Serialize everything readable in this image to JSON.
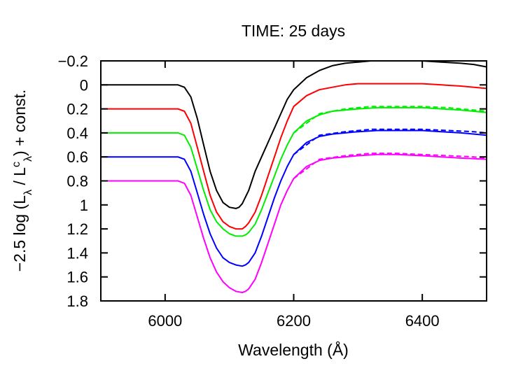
{
  "chart_data": {
    "type": "line",
    "title": "TIME: 25 days",
    "xlabel": "Wavelength (Å)",
    "ylabel": {
      "prefix": "−2.5 log (L",
      "sub1": "λ",
      "mid": " / L",
      "sup": "c",
      "sub2": "λ",
      "suffix": ") + const."
    },
    "xlim": [
      5900,
      6500
    ],
    "ylim": [
      -0.2,
      1.8
    ],
    "y_inverted": true,
    "xticks": [
      6000,
      6200,
      6400
    ],
    "yticks": [
      -0.2,
      0,
      0.2,
      0.4,
      0.6,
      0.8,
      1,
      1.2,
      1.4,
      1.6,
      1.8
    ],
    "ytick_labels": [
      "−0.2",
      "0",
      "0.2",
      "0.4",
      "0.6",
      "0.8",
      "1",
      "1.2",
      "1.4",
      "1.6",
      "1.8"
    ],
    "grid": false,
    "legend": "none",
    "series": [
      {
        "color": "#000000",
        "dash": "solid",
        "x": [
          5900,
          6000,
          6020,
          6030,
          6040,
          6050,
          6060,
          6070,
          6080,
          6090,
          6100,
          6110,
          6115,
          6120,
          6130,
          6140,
          6150,
          6160,
          6170,
          6180,
          6190,
          6200,
          6220,
          6240,
          6260,
          6280,
          6300,
          6320,
          6350,
          6380,
          6400,
          6430,
          6460,
          6480,
          6500
        ],
        "y": [
          0.0,
          0.0,
          0.0,
          0.02,
          0.1,
          0.28,
          0.5,
          0.72,
          0.88,
          0.98,
          1.02,
          1.03,
          1.02,
          0.99,
          0.88,
          0.72,
          0.6,
          0.48,
          0.36,
          0.24,
          0.12,
          0.04,
          -0.06,
          -0.12,
          -0.16,
          -0.18,
          -0.19,
          -0.2,
          -0.2,
          -0.2,
          -0.2,
          -0.19,
          -0.18,
          -0.17,
          -0.15
        ]
      },
      {
        "color": "#ff0000",
        "dash": "solid",
        "x": [
          5900,
          6020,
          6030,
          6040,
          6050,
          6060,
          6070,
          6080,
          6090,
          6100,
          6110,
          6120,
          6125,
          6130,
          6140,
          6150,
          6160,
          6170,
          6180,
          6190,
          6200,
          6220,
          6240,
          6260,
          6280,
          6300,
          6320,
          6350,
          6380,
          6400,
          6430,
          6460,
          6500
        ],
        "y": [
          0.2,
          0.2,
          0.22,
          0.32,
          0.52,
          0.72,
          0.92,
          1.06,
          1.14,
          1.18,
          1.2,
          1.2,
          1.18,
          1.15,
          1.06,
          0.92,
          0.76,
          0.6,
          0.44,
          0.3,
          0.18,
          0.09,
          0.04,
          0.02,
          0.0,
          -0.01,
          -0.01,
          -0.01,
          -0.01,
          -0.01,
          0.0,
          0.01,
          0.03
        ]
      },
      {
        "color": "#00ee00",
        "dash": "solid",
        "x": [
          5900,
          6020,
          6030,
          6040,
          6050,
          6060,
          6070,
          6080,
          6090,
          6100,
          6110,
          6120,
          6125,
          6130,
          6140,
          6150,
          6160,
          6170,
          6180,
          6190,
          6200,
          6220,
          6240,
          6260,
          6280,
          6300,
          6330,
          6360,
          6400,
          6430,
          6460,
          6500
        ],
        "y": [
          0.4,
          0.4,
          0.42,
          0.52,
          0.7,
          0.88,
          1.04,
          1.14,
          1.2,
          1.24,
          1.26,
          1.26,
          1.25,
          1.23,
          1.16,
          1.04,
          0.9,
          0.76,
          0.62,
          0.5,
          0.4,
          0.3,
          0.25,
          0.22,
          0.21,
          0.2,
          0.19,
          0.19,
          0.19,
          0.2,
          0.21,
          0.23
        ]
      },
      {
        "color": "#00ee00",
        "dash": "dashed",
        "x": [
          6200,
          6240,
          6280,
          6320,
          6360,
          6400,
          6440,
          6480,
          6500
        ],
        "y": [
          0.4,
          0.24,
          0.2,
          0.18,
          0.18,
          0.18,
          0.19,
          0.21,
          0.22
        ]
      },
      {
        "color": "#0000ff",
        "dash": "solid",
        "x": [
          5900,
          6020,
          6030,
          6040,
          6050,
          6060,
          6070,
          6080,
          6090,
          6100,
          6110,
          6120,
          6125,
          6130,
          6140,
          6150,
          6160,
          6170,
          6180,
          6190,
          6200,
          6220,
          6240,
          6260,
          6280,
          6300,
          6330,
          6360,
          6400,
          6430,
          6460,
          6500
        ],
        "y": [
          0.6,
          0.6,
          0.62,
          0.72,
          0.9,
          1.08,
          1.24,
          1.36,
          1.44,
          1.48,
          1.5,
          1.51,
          1.5,
          1.48,
          1.4,
          1.26,
          1.1,
          0.94,
          0.8,
          0.68,
          0.58,
          0.48,
          0.43,
          0.41,
          0.4,
          0.39,
          0.38,
          0.38,
          0.38,
          0.39,
          0.4,
          0.42
        ]
      },
      {
        "color": "#0000ff",
        "dash": "dashed",
        "x": [
          6200,
          6240,
          6280,
          6320,
          6360,
          6400,
          6440,
          6480,
          6500
        ],
        "y": [
          0.58,
          0.42,
          0.39,
          0.37,
          0.37,
          0.37,
          0.38,
          0.39,
          0.4
        ]
      },
      {
        "color": "#ff00ff",
        "dash": "solid",
        "x": [
          5900,
          6020,
          6030,
          6040,
          6050,
          6060,
          6070,
          6080,
          6090,
          6100,
          6110,
          6120,
          6125,
          6130,
          6140,
          6150,
          6160,
          6170,
          6180,
          6190,
          6200,
          6220,
          6240,
          6260,
          6280,
          6300,
          6330,
          6360,
          6400,
          6430,
          6460,
          6500
        ],
        "y": [
          0.8,
          0.8,
          0.82,
          0.92,
          1.1,
          1.28,
          1.44,
          1.56,
          1.64,
          1.69,
          1.72,
          1.73,
          1.72,
          1.7,
          1.62,
          1.48,
          1.32,
          1.16,
          1.0,
          0.88,
          0.78,
          0.68,
          0.63,
          0.61,
          0.6,
          0.59,
          0.58,
          0.58,
          0.59,
          0.6,
          0.61,
          0.62
        ]
      },
      {
        "color": "#ff00ff",
        "dash": "dashed",
        "x": [
          6200,
          6240,
          6280,
          6320,
          6360,
          6400,
          6440,
          6480,
          6500
        ],
        "y": [
          0.78,
          0.62,
          0.59,
          0.57,
          0.57,
          0.58,
          0.59,
          0.6,
          0.61
        ]
      }
    ]
  }
}
